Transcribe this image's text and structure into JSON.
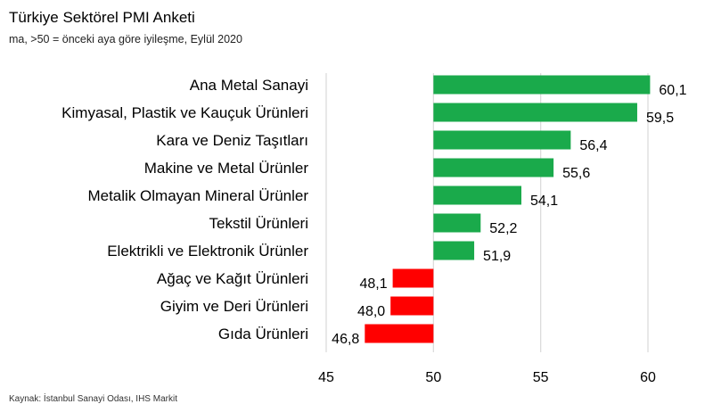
{
  "header": {
    "title": "Türkiye Sektörel PMI Anketi",
    "subtitle": "ma, >50 = önceki aya göre iyileşme, Eylül 2020"
  },
  "footer": {
    "source": "Kaynak: İstanbul Sanayi Odası, IHS Markit"
  },
  "colors": {
    "above": "#1aaa4b",
    "below": "#ff0000",
    "grid": "#d9d9d9"
  },
  "chart_data": {
    "type": "bar",
    "orientation": "horizontal",
    "title": "Türkiye Sektörel PMI Anketi",
    "subtitle": "ma, >50 = önceki aya göre iyileşme, Eylül 2020",
    "baseline": 50,
    "xlim": [
      45,
      60
    ],
    "xticks": [
      45,
      50,
      55,
      60
    ],
    "grid": true,
    "categories": [
      "Ana Metal Sanayi",
      "Kimyasal, Plastik ve Kauçuk Ürünleri",
      "Kara ve Deniz Taşıtları",
      "Makine ve Metal Ürünler",
      "Metalik Olmayan Mineral Ürünler",
      "Tekstil Ürünleri",
      "Elektrikli ve Elektronik Ürünler",
      "Ağaç ve Kağıt Ürünleri",
      "Giyim ve Deri Ürünleri",
      "Gıda Ürünleri"
    ],
    "values": [
      60.1,
      59.5,
      56.4,
      55.6,
      54.1,
      52.2,
      51.9,
      48.1,
      48.0,
      46.8
    ],
    "labels": [
      "60,1",
      "59,5",
      "56,4",
      "55,6",
      "54,1",
      "52,2",
      "51,9",
      "48,1",
      "48,0",
      "46,8"
    ]
  }
}
